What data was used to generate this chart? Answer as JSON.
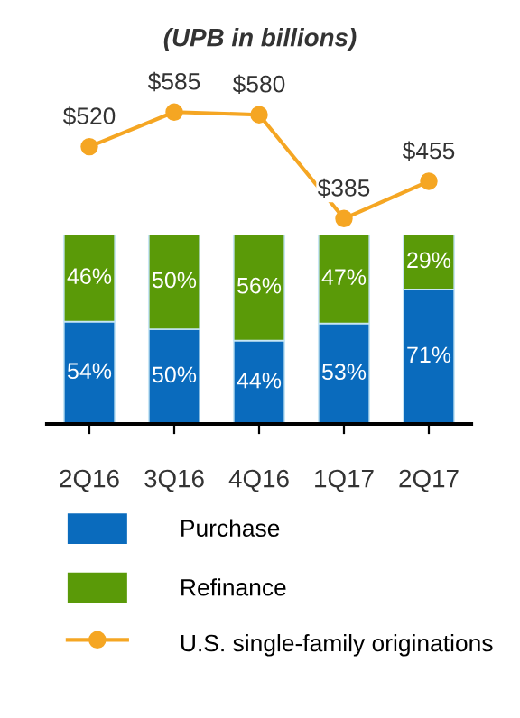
{
  "chart_data": [
    {
      "type": "line",
      "title": "(UPB in billions)",
      "categories": [
        null,
        null,
        null,
        null,
        null
      ],
      "tick_labels": false,
      "marker": "circle",
      "legend": "bottom",
      "grid": false,
      "series": [
        {
          "name": "U.S. single-family originations",
          "color": "#f5a623",
          "values": [
            520,
            585,
            580,
            385,
            455
          ],
          "value_labels": [
            "$520",
            "$585",
            "$580",
            "$385",
            "$455"
          ]
        }
      ]
    },
    {
      "type": "bar",
      "categories": [
        "2Q16",
        "3Q16",
        "4Q16",
        "1Q17",
        "2Q17"
      ],
      "stacked": true,
      "data_labels": true,
      "tick_labels": "x",
      "legend": "bottom",
      "grid": false,
      "series": [
        {
          "name": "Purchase",
          "color": "#0a6bbd",
          "values": [
            54,
            50,
            44,
            53,
            71
          ],
          "value_labels": [
            "54%",
            "50%",
            "44%",
            "53%",
            "71%"
          ]
        },
        {
          "name": "Refinance",
          "color": "#5a9a08",
          "values": [
            46,
            50,
            56,
            47,
            29
          ],
          "value_labels": [
            "46%",
            "50%",
            "56%",
            "47%",
            "29%"
          ]
        }
      ]
    }
  ]
}
